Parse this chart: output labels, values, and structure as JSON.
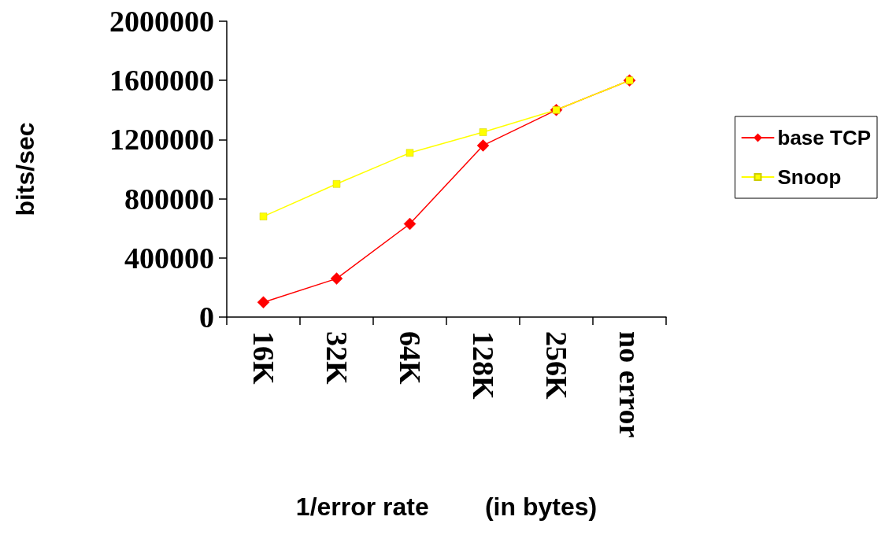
{
  "chart_data": {
    "type": "line",
    "xlabel": "1/error rate        (in bytes)",
    "ylabel": "bits/sec",
    "categories": [
      "16K",
      "32K",
      "64K",
      "128K",
      "256K",
      "no error"
    ],
    "series": [
      {
        "name": "base TCP",
        "color": "#ff0000",
        "marker": "diamond",
        "values": [
          100000,
          260000,
          630000,
          1160000,
          1400000,
          1600000
        ]
      },
      {
        "name": "Snoop",
        "color": "#ffff00",
        "marker": "square",
        "values": [
          680000,
          900000,
          1110000,
          1250000,
          1400000,
          1600000
        ]
      }
    ],
    "ylim": [
      0,
      2000000
    ],
    "yticks": [
      0,
      400000,
      800000,
      1200000,
      1600000,
      2000000
    ],
    "grid": false,
    "legend": "right",
    "line_style": "solid"
  }
}
